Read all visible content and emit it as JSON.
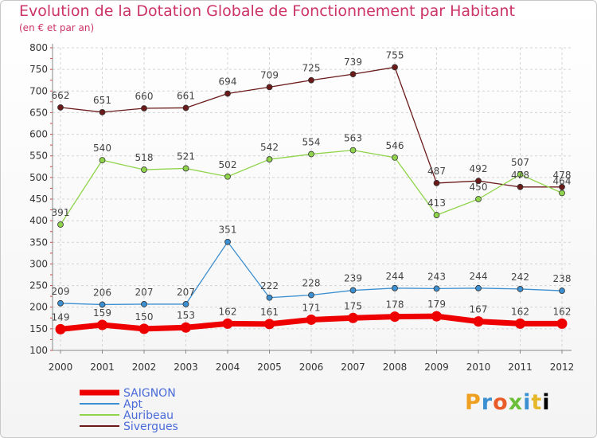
{
  "chart_data": {
    "type": "line",
    "title": "Evolution de la Dotation Globale de Fonctionnement par Habitant",
    "subtitle": "(en € et par an)",
    "xlabel": "",
    "ylabel": "",
    "x": [
      "2000",
      "2001",
      "2002",
      "2003",
      "2004",
      "2005",
      "2006",
      "2007",
      "2008",
      "2009",
      "2010",
      "2011",
      "2012"
    ],
    "ylim": [
      100,
      800
    ],
    "yticks": [
      100,
      150,
      200,
      250,
      300,
      350,
      400,
      450,
      500,
      550,
      600,
      650,
      700,
      750,
      800
    ],
    "grid": true,
    "legend": "bottom-left",
    "series": [
      {
        "name": "SAIGNON",
        "color": "#ee0000",
        "values": [
          149,
          159,
          150,
          153,
          162,
          161,
          171,
          175,
          178,
          179,
          167,
          162,
          162
        ]
      },
      {
        "name": "Apt",
        "color": "#3c8fd0",
        "values": [
          209,
          206,
          207,
          207,
          351,
          222,
          228,
          239,
          244,
          243,
          244,
          242,
          238
        ]
      },
      {
        "name": "Auribeau",
        "color": "#8fd44a",
        "values": [
          391,
          540,
          518,
          521,
          502,
          542,
          554,
          563,
          546,
          413,
          450,
          507,
          464
        ]
      },
      {
        "name": "Sivergues",
        "color": "#6b1a1a",
        "values": [
          662,
          651,
          660,
          661,
          694,
          709,
          725,
          739,
          755,
          487,
          492,
          478,
          478
        ]
      }
    ]
  },
  "colors": {
    "title": "#cc3366",
    "legend_text": "#4a6bd8",
    "axis_text": "#333333",
    "value_text": "#444444"
  },
  "logo_text": [
    "P",
    "r",
    "o",
    "x",
    "i",
    "t",
    "i"
  ]
}
